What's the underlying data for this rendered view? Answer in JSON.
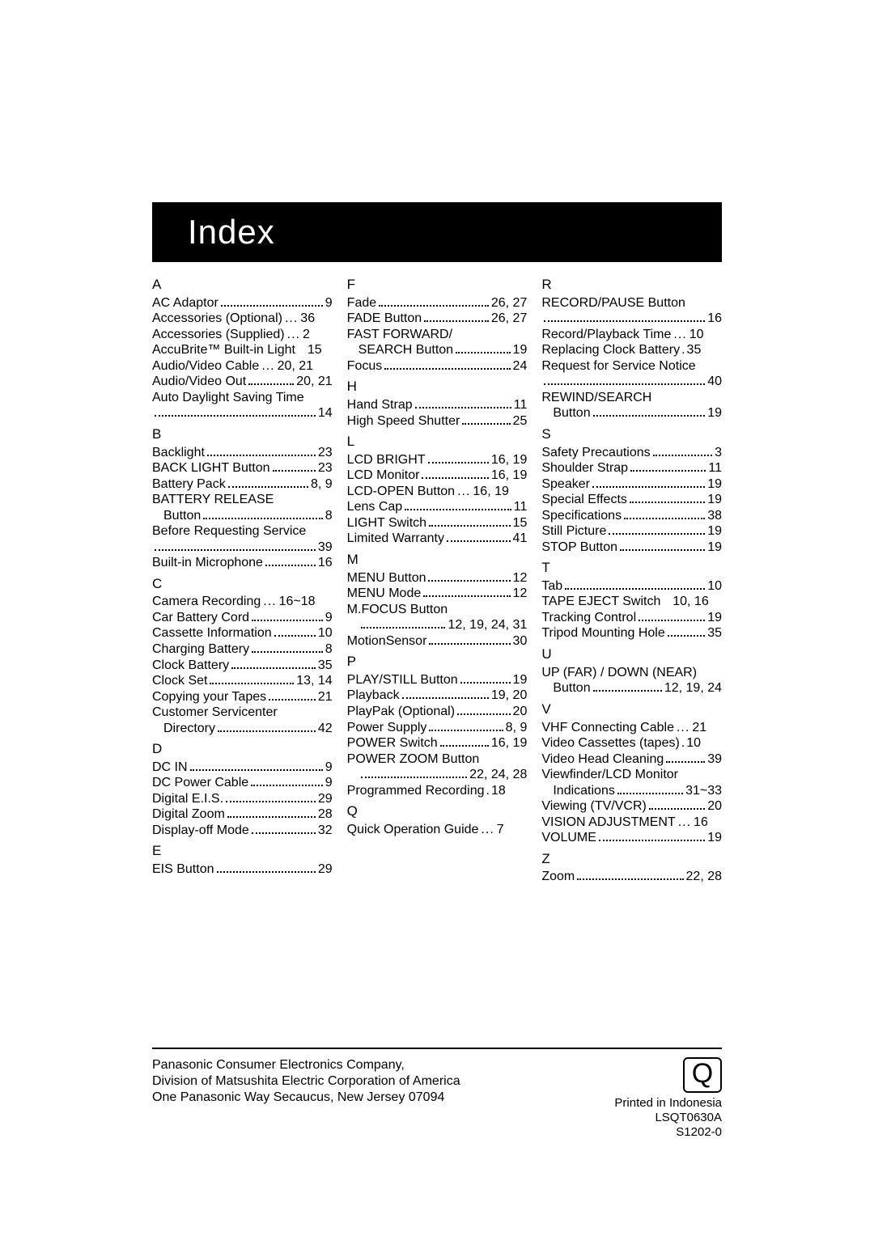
{
  "title": "Index",
  "columns": [
    [
      {
        "type": "letter",
        "text": "A"
      },
      {
        "type": "entry",
        "label": "AC Adaptor",
        "pg": "9"
      },
      {
        "type": "entry",
        "label": "Accessories (Optional)",
        "pg": "36",
        "nodot": true
      },
      {
        "type": "entry",
        "label": "Accessories (Supplied)",
        "pg": "2",
        "nodot": true
      },
      {
        "type": "entry",
        "label": "AccuBrite™ Built-in Light",
        "pg": "15",
        "nodot": true,
        "space": true
      },
      {
        "type": "entry",
        "label": "Audio/Video Cable",
        "pg": "20, 21",
        "nodot": true
      },
      {
        "type": "entry",
        "label": "Audio/Video Out",
        "pg": "20, 21"
      },
      {
        "type": "plain",
        "text": "Auto Daylight Saving Time"
      },
      {
        "type": "entry",
        "label": "",
        "pg": "14",
        "sub": false
      },
      {
        "type": "letter",
        "text": "B"
      },
      {
        "type": "entry",
        "label": "Backlight",
        "pg": "23"
      },
      {
        "type": "entry",
        "label": "BACK LIGHT Button",
        "pg": "23"
      },
      {
        "type": "entry",
        "label": "Battery Pack",
        "pg": "8, 9"
      },
      {
        "type": "plain",
        "text": "BATTERY RELEASE"
      },
      {
        "type": "entry",
        "label": "Button",
        "pg": "8",
        "sub": true
      },
      {
        "type": "plain",
        "text": "Before Requesting Service"
      },
      {
        "type": "entry",
        "label": "",
        "pg": "39"
      },
      {
        "type": "entry",
        "label": "Built-in Microphone",
        "pg": "16"
      },
      {
        "type": "letter",
        "text": "C"
      },
      {
        "type": "entry",
        "label": "Camera Recording",
        "pg": "16~18",
        "nodot": true
      },
      {
        "type": "entry",
        "label": "Car Battery Cord",
        "pg": "9"
      },
      {
        "type": "entry",
        "label": "Cassette Information",
        "pg": "10"
      },
      {
        "type": "entry",
        "label": "Charging Battery",
        "pg": "8"
      },
      {
        "type": "entry",
        "label": "Clock Battery",
        "pg": "35"
      },
      {
        "type": "entry",
        "label": "Clock Set",
        "pg": "13, 14"
      },
      {
        "type": "entry",
        "label": "Copying your Tapes",
        "pg": "21"
      },
      {
        "type": "plain",
        "text": "Customer Servicenter"
      },
      {
        "type": "entry",
        "label": "Directory",
        "pg": "42",
        "sub": true
      },
      {
        "type": "letter",
        "text": "D"
      },
      {
        "type": "entry",
        "label": "DC IN",
        "pg": "9"
      },
      {
        "type": "entry",
        "label": "DC Power Cable",
        "pg": "9"
      },
      {
        "type": "entry",
        "label": "Digital E.I.S.",
        "pg": "29"
      },
      {
        "type": "entry",
        "label": "Digital Zoom",
        "pg": "28"
      },
      {
        "type": "entry",
        "label": "Display-off Mode",
        "pg": "32"
      },
      {
        "type": "letter",
        "text": "E"
      },
      {
        "type": "entry",
        "label": "EIS Button",
        "pg": "29"
      }
    ],
    [
      {
        "type": "letter",
        "text": "F"
      },
      {
        "type": "entry",
        "label": "Fade",
        "pg": "26, 27"
      },
      {
        "type": "entry",
        "label": "FADE Button",
        "pg": "26, 27"
      },
      {
        "type": "plain",
        "text": "FAST FORWARD/"
      },
      {
        "type": "entry",
        "label": "SEARCH Button",
        "pg": "19",
        "sub": true
      },
      {
        "type": "entry",
        "label": "Focus",
        "pg": "24"
      },
      {
        "type": "letter",
        "text": "H"
      },
      {
        "type": "entry",
        "label": "Hand Strap",
        "pg": "11"
      },
      {
        "type": "entry",
        "label": "High Speed Shutter",
        "pg": "25"
      },
      {
        "type": "letter",
        "text": "L"
      },
      {
        "type": "entry",
        "label": "LCD BRIGHT",
        "pg": "16, 19"
      },
      {
        "type": "entry",
        "label": "LCD Monitor",
        "pg": "16, 19"
      },
      {
        "type": "entry",
        "label": "LCD-OPEN Button",
        "pg": "16, 19",
        "nodot": true
      },
      {
        "type": "entry",
        "label": "Lens Cap",
        "pg": "11"
      },
      {
        "type": "entry",
        "label": "LIGHT Switch",
        "pg": "15"
      },
      {
        "type": "entry",
        "label": "Limited Warranty",
        "pg": "41"
      },
      {
        "type": "letter",
        "text": "M"
      },
      {
        "type": "entry",
        "label": "MENU Button",
        "pg": "12"
      },
      {
        "type": "entry",
        "label": "MENU Mode",
        "pg": "12"
      },
      {
        "type": "plain",
        "text": "M.FOCUS Button"
      },
      {
        "type": "entry",
        "label": "",
        "pg": "12, 19, 24, 31",
        "sub": true
      },
      {
        "type": "entry",
        "label": "MotionSensor",
        "pg": "30"
      },
      {
        "type": "letter",
        "text": "P"
      },
      {
        "type": "entry",
        "label": "PLAY/STILL Button",
        "pg": "19"
      },
      {
        "type": "entry",
        "label": "Playback",
        "pg": "19, 20"
      },
      {
        "type": "entry",
        "label": "PlayPak (Optional)",
        "pg": "20"
      },
      {
        "type": "entry",
        "label": "Power Supply",
        "pg": "8, 9"
      },
      {
        "type": "entry",
        "label": "POWER Switch",
        "pg": "16, 19"
      },
      {
        "type": "plain",
        "text": "POWER ZOOM Button"
      },
      {
        "type": "entry",
        "label": "",
        "pg": "22, 24, 28",
        "sub": true
      },
      {
        "type": "entry",
        "label": "Programmed Recording",
        "pg": "18",
        "nodot": true,
        "dotchar": true
      },
      {
        "type": "letter",
        "text": "Q"
      },
      {
        "type": "entry",
        "label": "Quick Operation Guide",
        "pg": "7",
        "nodot": true
      }
    ],
    [
      {
        "type": "letter",
        "text": "R"
      },
      {
        "type": "plain",
        "text": "RECORD/PAUSE Button"
      },
      {
        "type": "entry",
        "label": "",
        "pg": "16"
      },
      {
        "type": "entry",
        "label": "Record/Playback Time",
        "pg": "10",
        "nodot": true
      },
      {
        "type": "entry",
        "label": "Replacing Clock Battery",
        "pg": "35",
        "nodot": true,
        "dotchar": true
      },
      {
        "type": "plain",
        "text": "Request for Service Notice"
      },
      {
        "type": "entry",
        "label": "",
        "pg": "40"
      },
      {
        "type": "plain",
        "text": "REWIND/SEARCH"
      },
      {
        "type": "entry",
        "label": "Button",
        "pg": "19",
        "sub": true
      },
      {
        "type": "letter",
        "text": "S"
      },
      {
        "type": "entry",
        "label": "Safety Precautions",
        "pg": "3"
      },
      {
        "type": "entry",
        "label": "Shoulder Strap",
        "pg": "11"
      },
      {
        "type": "entry",
        "label": "Speaker",
        "pg": "19"
      },
      {
        "type": "entry",
        "label": "Special Effects",
        "pg": "19"
      },
      {
        "type": "entry",
        "label": "Specifications",
        "pg": "38"
      },
      {
        "type": "entry",
        "label": "Still Picture",
        "pg": "19"
      },
      {
        "type": "entry",
        "label": "STOP Button",
        "pg": "19"
      },
      {
        "type": "letter",
        "text": "T"
      },
      {
        "type": "entry",
        "label": "Tab",
        "pg": "10"
      },
      {
        "type": "entry",
        "label": "TAPE EJECT Switch",
        "pg": "10, 16",
        "nodot": true,
        "space": true
      },
      {
        "type": "entry",
        "label": "Tracking Control",
        "pg": "19"
      },
      {
        "type": "entry",
        "label": "Tripod Mounting Hole",
        "pg": "35"
      },
      {
        "type": "letter",
        "text": "U"
      },
      {
        "type": "plain",
        "text": "UP (FAR) / DOWN (NEAR)"
      },
      {
        "type": "entry",
        "label": "Button",
        "pg": "12, 19, 24",
        "sub": true
      },
      {
        "type": "letter",
        "text": "V"
      },
      {
        "type": "entry",
        "label": "VHF Connecting Cable",
        "pg": "21",
        "nodot": true
      },
      {
        "type": "entry",
        "label": "Video Cassettes (tapes)",
        "pg": "10",
        "nodot": true,
        "dotchar": true
      },
      {
        "type": "entry",
        "label": "Video Head Cleaning",
        "pg": "39"
      },
      {
        "type": "plain",
        "text": "Viewfinder/LCD Monitor"
      },
      {
        "type": "entry",
        "label": "Indications",
        "pg": "31~33",
        "sub": true
      },
      {
        "type": "entry",
        "label": "Viewing (TV/VCR)",
        "pg": "20"
      },
      {
        "type": "entry",
        "label": "VISION ADJUSTMENT",
        "pg": "16",
        "nodot": true
      },
      {
        "type": "entry",
        "label": "VOLUME",
        "pg": "19"
      },
      {
        "type": "letter",
        "text": "Z"
      },
      {
        "type": "entry",
        "label": "Zoom",
        "pg": "22, 28"
      }
    ]
  ],
  "footer": {
    "line1": "Panasonic Consumer Electronics Company,",
    "line2": "Division of Matsushita Electric Corporation of America",
    "line3": "One Panasonic Way Secaucus, New Jersey 07094",
    "badge": "Q",
    "printed": "Printed in Indonesia",
    "code1": "LSQT0630A",
    "code2": "S1202-0"
  }
}
